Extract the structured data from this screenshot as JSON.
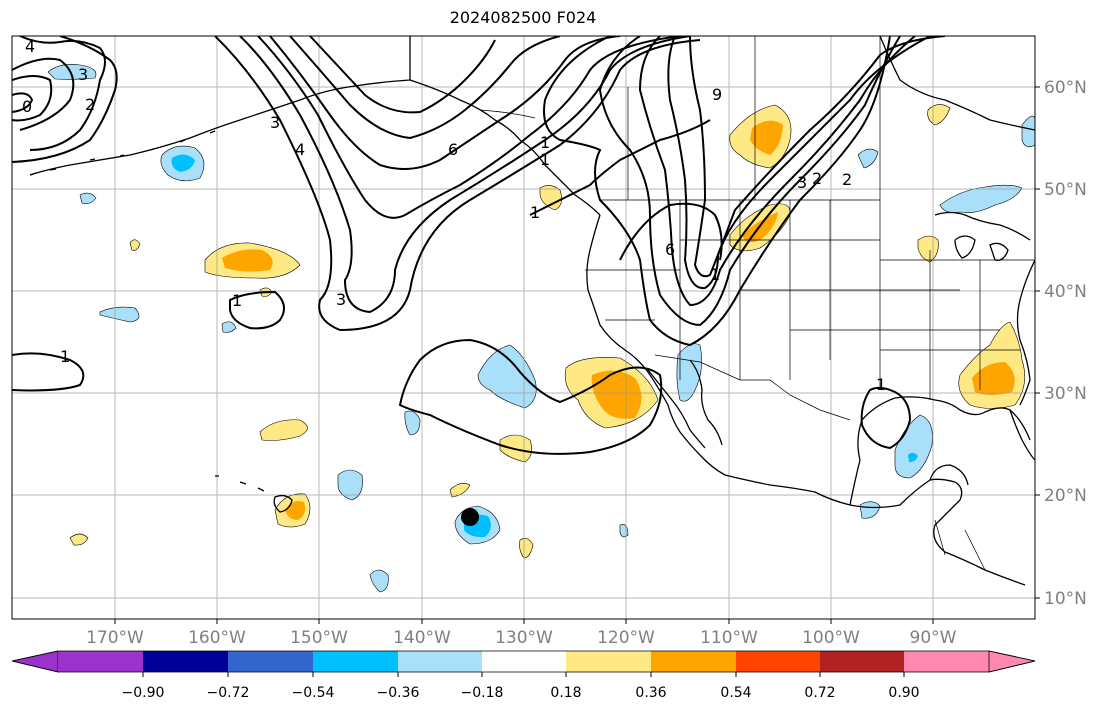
{
  "title": "2024082500 F024",
  "lon_labels": [
    "170°W",
    "160°W",
    "150°W",
    "140°W",
    "130°W",
    "120°W",
    "110°W",
    "100°W",
    "90°W"
  ],
  "lat_labels": [
    "60°N",
    "50°N",
    "40°N",
    "30°N",
    "20°N",
    "10°N"
  ],
  "colorbar": {
    "colors": [
      "#9933cc",
      "#000099",
      "#3366cc",
      "#00bfff",
      "#aadff9",
      "#ffffff",
      "#ffe985",
      "#ffa500",
      "#ff4500",
      "#b22222",
      "#ff88b0"
    ],
    "labels": [
      "−0.90",
      "−0.72",
      "−0.54",
      "−0.36",
      "−0.18",
      "0.18",
      "0.36",
      "0.54",
      "0.72",
      "0.90"
    ]
  },
  "contour_labels": [
    "1",
    "1",
    "1",
    "1",
    "1",
    "2",
    "2",
    "3",
    "3",
    "3",
    "4",
    "4",
    "6",
    "6",
    "9",
    "0",
    "3",
    "2",
    "1",
    "1"
  ],
  "storm_marker": "storm-center-dot"
}
